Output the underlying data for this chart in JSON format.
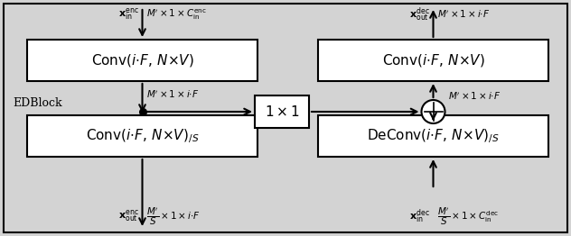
{
  "bg_color": "#d3d3d3",
  "box_color": "#ffffff",
  "box_edge_color": "#000000",
  "fig_width": 6.32,
  "fig_height": 2.62,
  "conv_top_left_label": "Conv$(i{\\cdot}F,\\, N{\\times}V)$",
  "conv_top_right_label": "Conv$(i{\\cdot}F,\\, N{\\times}V)$",
  "conv_bot_left_label": "Conv$(i{\\cdot}F,\\, N{\\times}V)_{/S}$",
  "deconv_bot_right_label": "DeConv$(i{\\cdot}F,\\, N{\\times}V)_{/S}$",
  "onebyone_label": "$1\\times 1$",
  "edblock_label": "EDBlock",
  "top_left_in_x": "$\\mathbf{x}^\\mathrm{enc}_\\mathrm{in}$",
  "top_left_in_dim": "$M^\\prime \\times 1 \\times C^\\mathrm{enc}_\\mathrm{in}$",
  "top_right_out_x": "$\\mathbf{x}^\\mathrm{dec}_\\mathrm{out}$",
  "top_right_out_dim": "$M^\\prime \\times 1 \\times i{\\cdot}F$",
  "bot_left_out_x": "$\\mathbf{x}^\\mathrm{enc}_\\mathrm{out}$",
  "bot_left_out_dim": "$\\dfrac{M^\\prime}{S} \\times 1 \\times i{\\cdot}F$",
  "bot_right_in_x": "$\\mathbf{x}^\\mathrm{dec}_\\mathrm{in}$",
  "bot_right_in_dim": "$\\dfrac{M^\\prime}{S} \\times 1 \\times C^\\mathrm{dec}_\\mathrm{in}$",
  "mid_down_label": "$M^\\prime \\times 1 \\times i{\\cdot}F$",
  "mid_right_label": "$M^\\prime \\times 1 \\times i{\\cdot}F$",
  "font_size_box": 11,
  "font_size_label": 8,
  "font_size_dim": 7.5
}
